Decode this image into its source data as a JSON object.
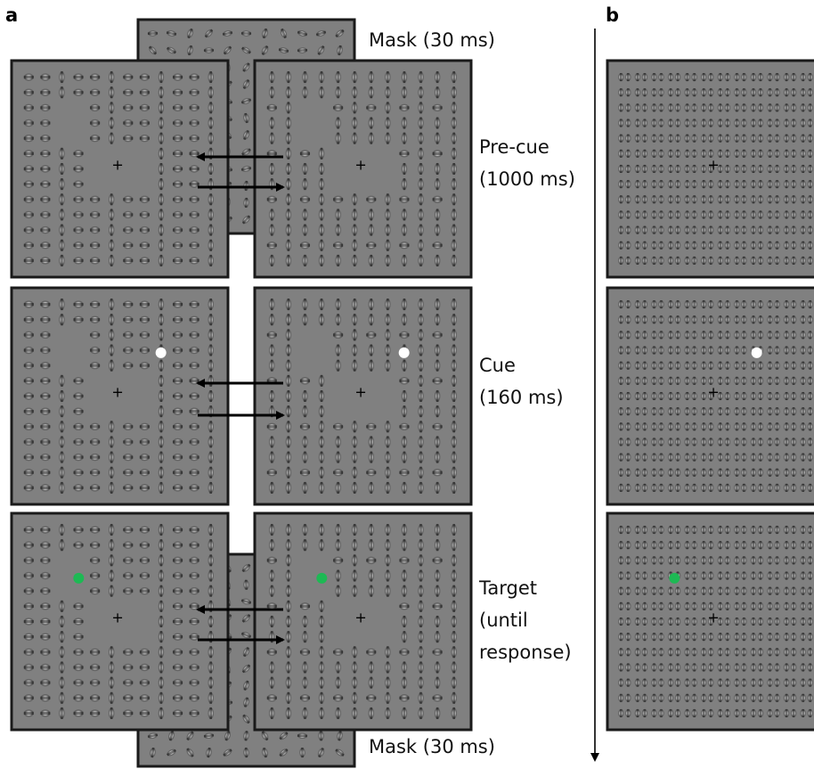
{
  "panels": {
    "a": "a",
    "b": "b"
  },
  "labels": {
    "mask_top": "Mask (30 ms)",
    "precue_1": "Pre-cue",
    "precue_2": "(1000 ms)",
    "cue_1": "Cue",
    "cue_2": "(160 ms)",
    "target_1": "Target",
    "target_2": "(until",
    "target_3": "response)",
    "mask_bottom": "Mask (30 ms)"
  },
  "fixation": "+",
  "colors": {
    "background": "#808080",
    "frame": "#1a1a1a",
    "cue_dot": "#ffffff",
    "target_dot": "#1db954",
    "arrow": "#000000"
  },
  "icons": [
    "left-arrow-icon",
    "right-arrow-icon",
    "timeline-arrow-icon"
  ]
}
